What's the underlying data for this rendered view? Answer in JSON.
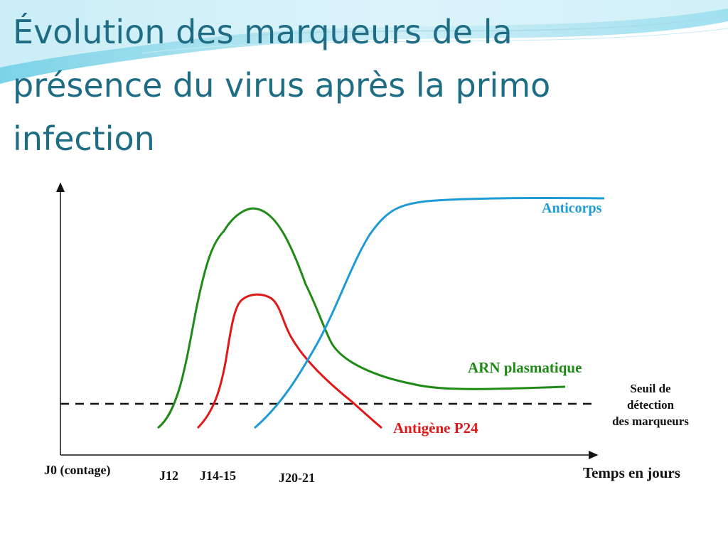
{
  "slide": {
    "title": "Évolution des marqueurs de la\nprésence du virus après la primo\ninfection"
  },
  "diagram": {
    "curves": {
      "anticorps": {
        "label": "Anticorps",
        "color": "#1e9ad6"
      },
      "arn": {
        "label": "ARN plasmatique",
        "color": "#1f8a16"
      },
      "p24": {
        "label": "Antigène P24",
        "color": "#e01818"
      }
    },
    "threshold": {
      "label": "Seuil de\ndétection\ndes marqueurs"
    },
    "x_axis": {
      "label": "Temps en jours",
      "origin_label": "J0 (contage)",
      "ticks": [
        "J12",
        "J14-15",
        "J20-21"
      ]
    }
  }
}
